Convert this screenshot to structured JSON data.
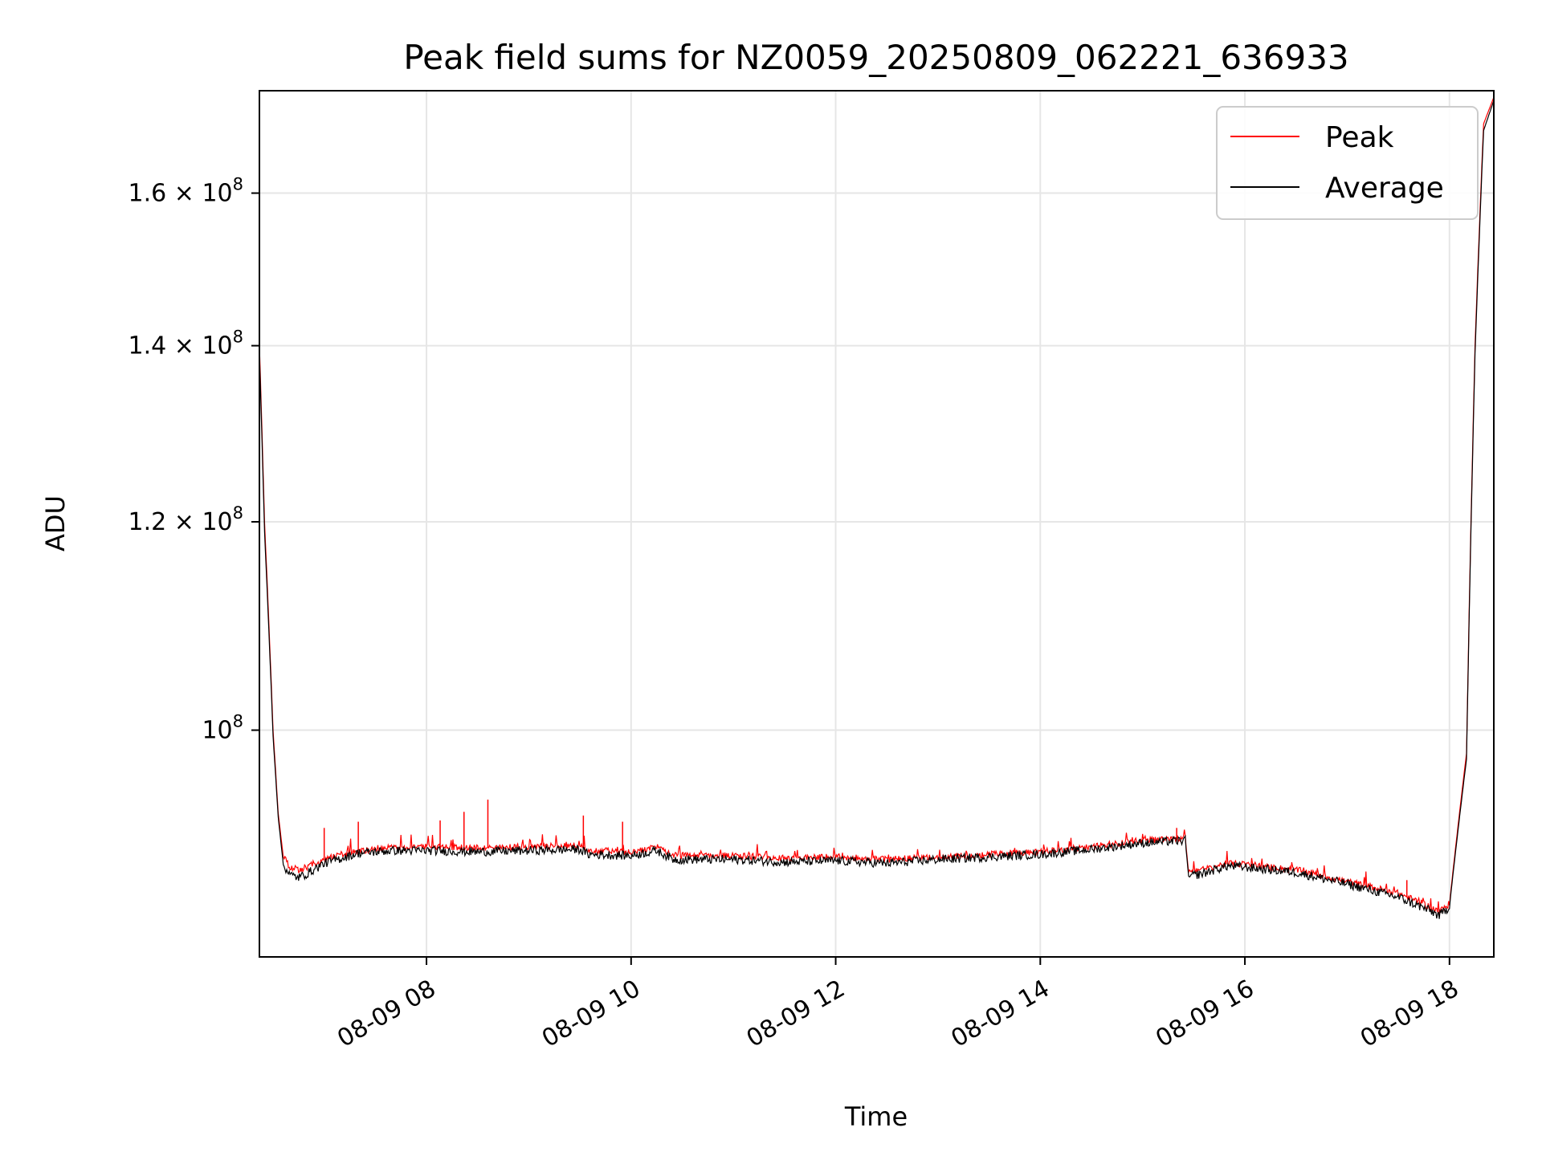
{
  "chart_data": {
    "type": "line",
    "title": "Peak field sums for NZ0059_20250809_062221_636933",
    "xlabel": "Time",
    "ylabel": "ADU",
    "y_scale": "log",
    "grid": true,
    "legend_position": "top-right",
    "xlim": [
      "2025-08-09 06:22",
      "2025-08-09 18:26"
    ],
    "ylim": [
      82000000,
      175000000
    ],
    "x_ticks": [
      {
        "t": "2025-08-09 08:00",
        "label": "08-09 08"
      },
      {
        "t": "2025-08-09 10:00",
        "label": "08-09 10"
      },
      {
        "t": "2025-08-09 12:00",
        "label": "08-09 12"
      },
      {
        "t": "2025-08-09 14:00",
        "label": "08-09 14"
      },
      {
        "t": "2025-08-09 16:00",
        "label": "08-09 16"
      },
      {
        "t": "2025-08-09 18:00",
        "label": "08-09 18"
      }
    ],
    "y_ticks": [
      {
        "value": 100000000,
        "mantissa": "",
        "exponent": "8"
      },
      {
        "value": 120000000,
        "mantissa": "1.2",
        "exponent": "8"
      },
      {
        "value": 140000000,
        "mantissa": "1.4",
        "exponent": "8"
      },
      {
        "value": 160000000,
        "mantissa": "1.6",
        "exponent": "8"
      }
    ],
    "series": [
      {
        "name": "Peak",
        "color": "#ff0000",
        "x": [
          "2025-08-09 06:22",
          "2025-08-09 06:25",
          "2025-08-09 06:30",
          "2025-08-09 06:33",
          "2025-08-09 06:36",
          "2025-08-09 06:40",
          "2025-08-09 06:45",
          "2025-08-09 06:50",
          "2025-08-09 06:55",
          "2025-08-09 07:00",
          "2025-08-09 07:10",
          "2025-08-09 07:20",
          "2025-08-09 07:40",
          "2025-08-09 08:00",
          "2025-08-09 08:30",
          "2025-08-09 09:00",
          "2025-08-09 09:30",
          "2025-08-09 09:35",
          "2025-08-09 10:00",
          "2025-08-09 10:15",
          "2025-08-09 10:25",
          "2025-08-09 11:00",
          "2025-08-09 11:30",
          "2025-08-09 12:00",
          "2025-08-09 12:30",
          "2025-08-09 13:00",
          "2025-08-09 13:30",
          "2025-08-09 14:00",
          "2025-08-09 14:30",
          "2025-08-09 15:00",
          "2025-08-09 15:25",
          "2025-08-09 15:27",
          "2025-08-09 15:35",
          "2025-08-09 15:50",
          "2025-08-09 16:00",
          "2025-08-09 16:30",
          "2025-08-09 17:00",
          "2025-08-09 17:30",
          "2025-08-09 17:50",
          "2025-08-09 17:54",
          "2025-08-09 18:00",
          "2025-08-09 18:10",
          "2025-08-09 18:15",
          "2025-08-09 18:20",
          "2025-08-09 18:26"
        ],
        "values": [
          140000000,
          120000000,
          100000000,
          93000000,
          89500000,
          88700000,
          88500000,
          88700000,
          89000000,
          89300000,
          89700000,
          90000000,
          90200000,
          90300000,
          90200000,
          90300000,
          90400000,
          90000000,
          89900000,
          90300000,
          89600000,
          89600000,
          89400000,
          89500000,
          89300000,
          89500000,
          89700000,
          89900000,
          90300000,
          90800000,
          91000000,
          88300000,
          88500000,
          89000000,
          88900000,
          88500000,
          87600000,
          86700000,
          85600000,
          85300000,
          85900000,
          98000000,
          140000000,
          170000000,
          174000000
        ],
        "spikes": [
          {
            "x": "2025-08-09 07:00",
            "value": 91800000
          },
          {
            "x": "2025-08-09 07:20",
            "value": 92300000
          },
          {
            "x": "2025-08-09 08:08",
            "value": 92400000
          },
          {
            "x": "2025-08-09 08:22",
            "value": 93100000
          },
          {
            "x": "2025-08-09 08:36",
            "value": 94100000
          },
          {
            "x": "2025-08-09 09:32",
            "value": 92800000
          },
          {
            "x": "2025-08-09 09:55",
            "value": 92300000
          },
          {
            "x": "2025-08-09 15:20",
            "value": 91800000
          },
          {
            "x": "2025-08-09 17:35",
            "value": 87700000
          }
        ]
      },
      {
        "name": "Average",
        "color": "#000000",
        "x": [
          "2025-08-09 06:22",
          "2025-08-09 06:25",
          "2025-08-09 06:30",
          "2025-08-09 06:33",
          "2025-08-09 06:36",
          "2025-08-09 06:40",
          "2025-08-09 06:45",
          "2025-08-09 06:50",
          "2025-08-09 06:55",
          "2025-08-09 07:00",
          "2025-08-09 07:10",
          "2025-08-09 07:20",
          "2025-08-09 07:40",
          "2025-08-09 08:00",
          "2025-08-09 08:30",
          "2025-08-09 09:00",
          "2025-08-09 09:30",
          "2025-08-09 09:35",
          "2025-08-09 10:00",
          "2025-08-09 10:15",
          "2025-08-09 10:25",
          "2025-08-09 11:00",
          "2025-08-09 11:30",
          "2025-08-09 12:00",
          "2025-08-09 12:30",
          "2025-08-09 13:00",
          "2025-08-09 13:30",
          "2025-08-09 14:00",
          "2025-08-09 14:30",
          "2025-08-09 15:00",
          "2025-08-09 15:25",
          "2025-08-09 15:27",
          "2025-08-09 15:35",
          "2025-08-09 15:50",
          "2025-08-09 16:00",
          "2025-08-09 16:30",
          "2025-08-09 17:00",
          "2025-08-09 17:30",
          "2025-08-09 17:50",
          "2025-08-09 17:54",
          "2025-08-09 18:00",
          "2025-08-09 18:10",
          "2025-08-09 18:15",
          "2025-08-09 18:20",
          "2025-08-09 18:26"
        ],
        "values": [
          139000000,
          119000000,
          99500000,
          92700000,
          88900000,
          88100000,
          87900000,
          88200000,
          88600000,
          89000000,
          89400000,
          89800000,
          90000000,
          90000000,
          89900000,
          90000000,
          90100000,
          89700000,
          89600000,
          90000000,
          89300000,
          89300000,
          89100000,
          89200000,
          89000000,
          89300000,
          89500000,
          89700000,
          90100000,
          90600000,
          90800000,
          88000000,
          88200000,
          88800000,
          88700000,
          88300000,
          87400000,
          86400000,
          85300000,
          85000000,
          85700000,
          97500000,
          139000000,
          169000000,
          173500000
        ]
      }
    ]
  },
  "legend": {
    "items": [
      {
        "label": "Peak",
        "color": "#ff0000"
      },
      {
        "label": "Average",
        "color": "#000000"
      }
    ]
  }
}
